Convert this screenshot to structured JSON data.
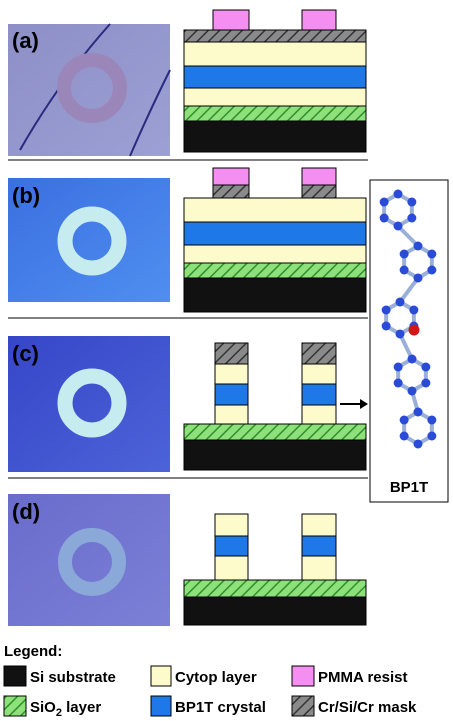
{
  "panels": [
    {
      "label": "(a)"
    },
    {
      "label": "(b)"
    },
    {
      "label": "(c)"
    },
    {
      "label": "(d)"
    }
  ],
  "molecule": {
    "label": "BP1T"
  },
  "legend": {
    "title": "Legend:",
    "items": [
      {
        "label": "Si substrate"
      },
      {
        "label": "Cytop layer"
      },
      {
        "label": "PMMA resist"
      },
      {
        "label": "SiO",
        "subscript": "2",
        "suffix": " layer"
      },
      {
        "label": "BP1T crystal"
      },
      {
        "label": "Cr/Si/Cr mask"
      }
    ]
  }
}
